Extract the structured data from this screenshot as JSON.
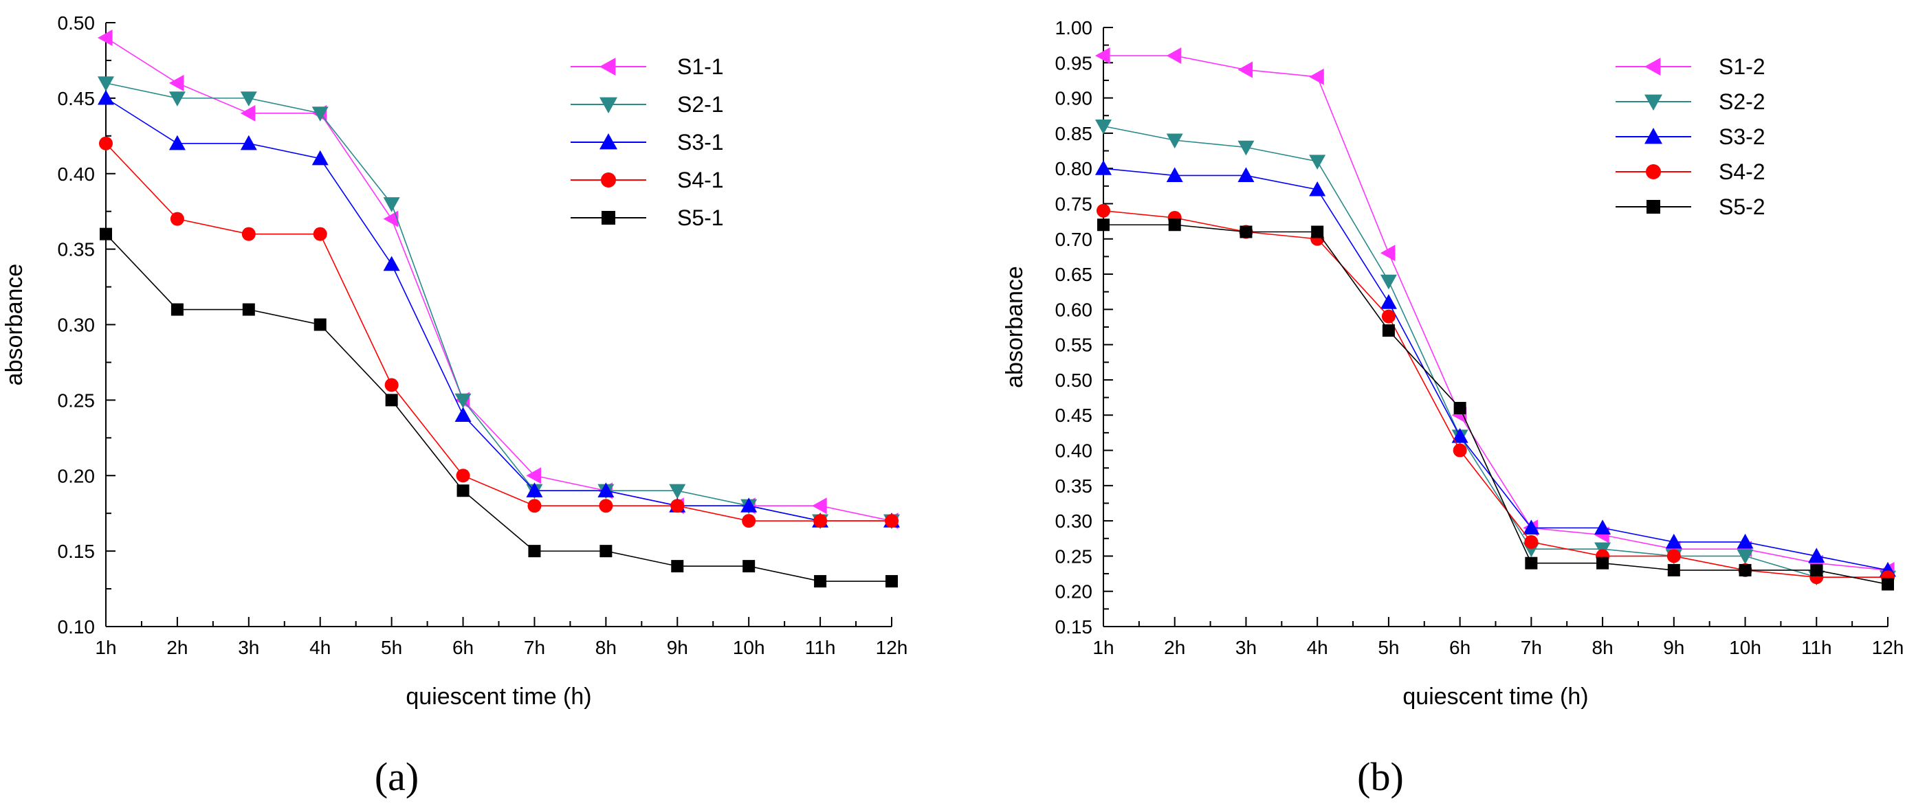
{
  "chart_data": [
    {
      "type": "line",
      "panel_label": "(a)",
      "xlabel": "quiescent time (h)",
      "ylabel": "absorbance",
      "categories": [
        "1h",
        "2h",
        "3h",
        "4h",
        "5h",
        "6h",
        "7h",
        "8h",
        "9h",
        "10h",
        "11h",
        "12h"
      ],
      "ylim": [
        0.1,
        0.5
      ],
      "yticks": [
        "0.10",
        "0.15",
        "0.20",
        "0.25",
        "0.30",
        "0.35",
        "0.40",
        "0.45",
        "0.50"
      ],
      "legend_position": "top-right",
      "series": [
        {
          "name": "S1-1",
          "color": "#ff33ff",
          "marker": "triangle-left",
          "values": [
            0.49,
            0.46,
            0.44,
            0.44,
            0.37,
            0.25,
            0.2,
            0.19,
            0.18,
            0.18,
            0.18,
            0.17
          ]
        },
        {
          "name": "S2-1",
          "color": "#2a8a8a",
          "marker": "triangle-down",
          "values": [
            0.46,
            0.45,
            0.45,
            0.44,
            0.38,
            0.25,
            0.19,
            0.19,
            0.19,
            0.18,
            0.17,
            0.17
          ]
        },
        {
          "name": "S3-1",
          "color": "#0000ff",
          "marker": "triangle-up",
          "values": [
            0.45,
            0.42,
            0.42,
            0.41,
            0.34,
            0.24,
            0.19,
            0.19,
            0.18,
            0.18,
            0.17,
            0.17
          ]
        },
        {
          "name": "S4-1",
          "color": "#ff0000",
          "marker": "circle",
          "values": [
            0.42,
            0.37,
            0.36,
            0.36,
            0.26,
            0.2,
            0.18,
            0.18,
            0.18,
            0.17,
            0.17,
            0.17
          ]
        },
        {
          "name": "S5-1",
          "color": "#000000",
          "marker": "square",
          "values": [
            0.36,
            0.31,
            0.31,
            0.3,
            0.25,
            0.19,
            0.15,
            0.15,
            0.14,
            0.14,
            0.13,
            0.13
          ]
        }
      ]
    },
    {
      "type": "line",
      "panel_label": "(b)",
      "xlabel": "quiescent time (h)",
      "ylabel": "absorbance",
      "categories": [
        "1h",
        "2h",
        "3h",
        "4h",
        "5h",
        "6h",
        "7h",
        "8h",
        "9h",
        "10h",
        "11h",
        "12h"
      ],
      "ylim": [
        0.15,
        1.0
      ],
      "yticks": [
        "0.15",
        "0.20",
        "0.25",
        "0.30",
        "0.35",
        "0.40",
        "0.45",
        "0.50",
        "0.55",
        "0.60",
        "0.65",
        "0.70",
        "0.75",
        "0.80",
        "0.85",
        "0.90",
        "0.95",
        "1.00"
      ],
      "legend_position": "top-right",
      "series": [
        {
          "name": "S1-2",
          "color": "#ff33ff",
          "marker": "triangle-left",
          "values": [
            0.96,
            0.96,
            0.94,
            0.93,
            0.68,
            0.45,
            0.29,
            0.28,
            0.26,
            0.26,
            0.24,
            0.23
          ]
        },
        {
          "name": "S2-2",
          "color": "#2a8a8a",
          "marker": "triangle-down",
          "values": [
            0.86,
            0.84,
            0.83,
            0.81,
            0.64,
            0.42,
            0.26,
            0.26,
            0.25,
            0.25,
            0.22,
            0.22
          ]
        },
        {
          "name": "S3-2",
          "color": "#0000ff",
          "marker": "triangle-up",
          "values": [
            0.8,
            0.79,
            0.79,
            0.77,
            0.61,
            0.42,
            0.29,
            0.29,
            0.27,
            0.27,
            0.25,
            0.23
          ]
        },
        {
          "name": "S4-2",
          "color": "#ff0000",
          "marker": "circle",
          "values": [
            0.74,
            0.73,
            0.71,
            0.7,
            0.59,
            0.4,
            0.27,
            0.25,
            0.25,
            0.23,
            0.22,
            0.22
          ]
        },
        {
          "name": "S5-2",
          "color": "#000000",
          "marker": "square",
          "values": [
            0.72,
            0.72,
            0.71,
            0.71,
            0.57,
            0.46,
            0.24,
            0.24,
            0.23,
            0.23,
            0.23,
            0.21
          ]
        }
      ]
    }
  ]
}
